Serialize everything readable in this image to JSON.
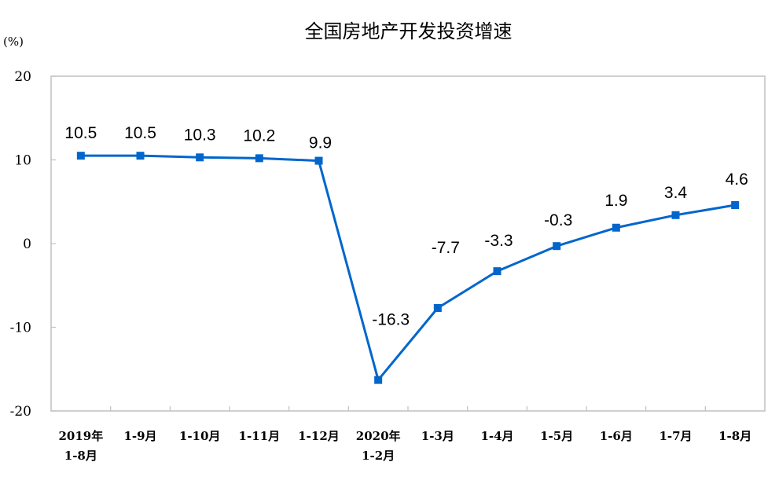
{
  "chart_data": {
    "type": "line",
    "title": "全国房地产开发投资增速",
    "ylabel": "(%)",
    "xlabel": "",
    "ylim": [
      -20,
      20
    ],
    "yticks": [
      20,
      10,
      0,
      -10,
      -20
    ],
    "grid": false,
    "legend": null,
    "categories": [
      [
        "2019年",
        "1-8月"
      ],
      [
        "1-9月"
      ],
      [
        "1-10月"
      ],
      [
        "1-11月"
      ],
      [
        "1-12月"
      ],
      [
        "2020年",
        "1-2月"
      ],
      [
        "1-3月"
      ],
      [
        "1-4月"
      ],
      [
        "1-5月"
      ],
      [
        "1-6月"
      ],
      [
        "1-7月"
      ],
      [
        "1-8月"
      ]
    ],
    "series": [
      {
        "name": "全国房地产开发投资增速",
        "color": "#0066CC",
        "marker": "square",
        "values": [
          10.5,
          10.5,
          10.3,
          10.2,
          9.9,
          -16.3,
          -7.7,
          -3.3,
          -0.3,
          1.9,
          3.4,
          4.6
        ],
        "labels": [
          "10.5",
          "10.5",
          "10.3",
          "10.2",
          "9.9",
          "-16.3",
          "-7.7",
          "-3.3",
          "-0.3",
          "1.9",
          "3.4",
          "4.6"
        ]
      }
    ]
  },
  "colors": {
    "line": "#0066CC",
    "axis": "#C0C0C0",
    "text": "#000000"
  }
}
